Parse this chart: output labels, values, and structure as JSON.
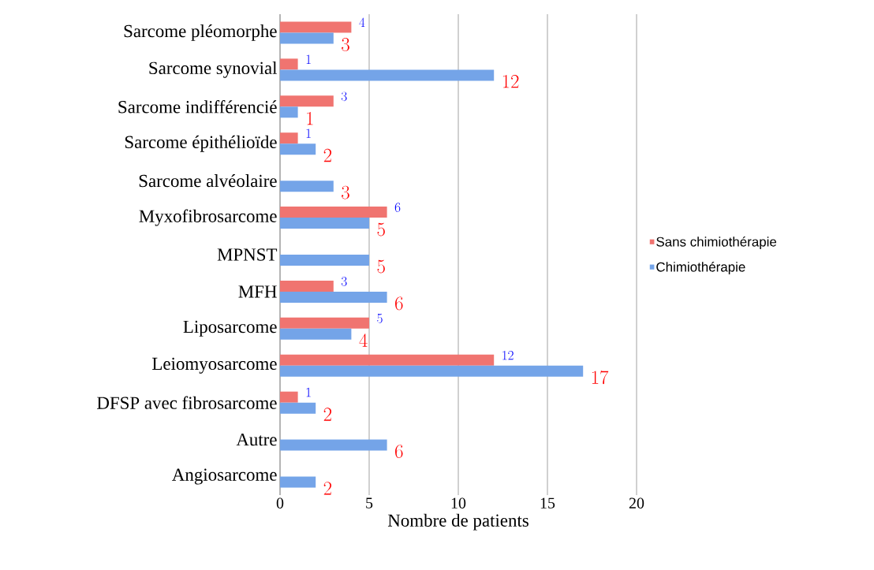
{
  "chart_data": {
    "type": "bar",
    "orientation": "horizontal",
    "xlabel": "Nombre de patients",
    "categories": [
      "Sarcome pléomorphe",
      "Sarcome synovial",
      "Sarcome indifférencié",
      "Sarcome épithélioïde",
      "Sarcome alvéolaire",
      "Myxofibrosarcome",
      "MPNST",
      "MFH",
      "Liposarcome",
      "Leiomyosarcome",
      "DFSP avec fibrosarcome",
      "Autre",
      "Angiosarcome"
    ],
    "series": [
      {
        "name": "Sans chimiothérapie",
        "color": "#f07470",
        "values": [
          4,
          1,
          3,
          1,
          null,
          6,
          null,
          3,
          5,
          12,
          1,
          null,
          null
        ]
      },
      {
        "name": "Chimiothérapie",
        "color": "#74a4e8",
        "values": [
          3,
          12,
          1,
          2,
          3,
          5,
          5,
          6,
          4,
          17,
          2,
          6,
          2
        ]
      }
    ],
    "xlim": [
      0,
      20
    ],
    "xticks": [
      0,
      5,
      10,
      15,
      20
    ],
    "grid": "x",
    "legend": "right",
    "data_labels": true
  }
}
